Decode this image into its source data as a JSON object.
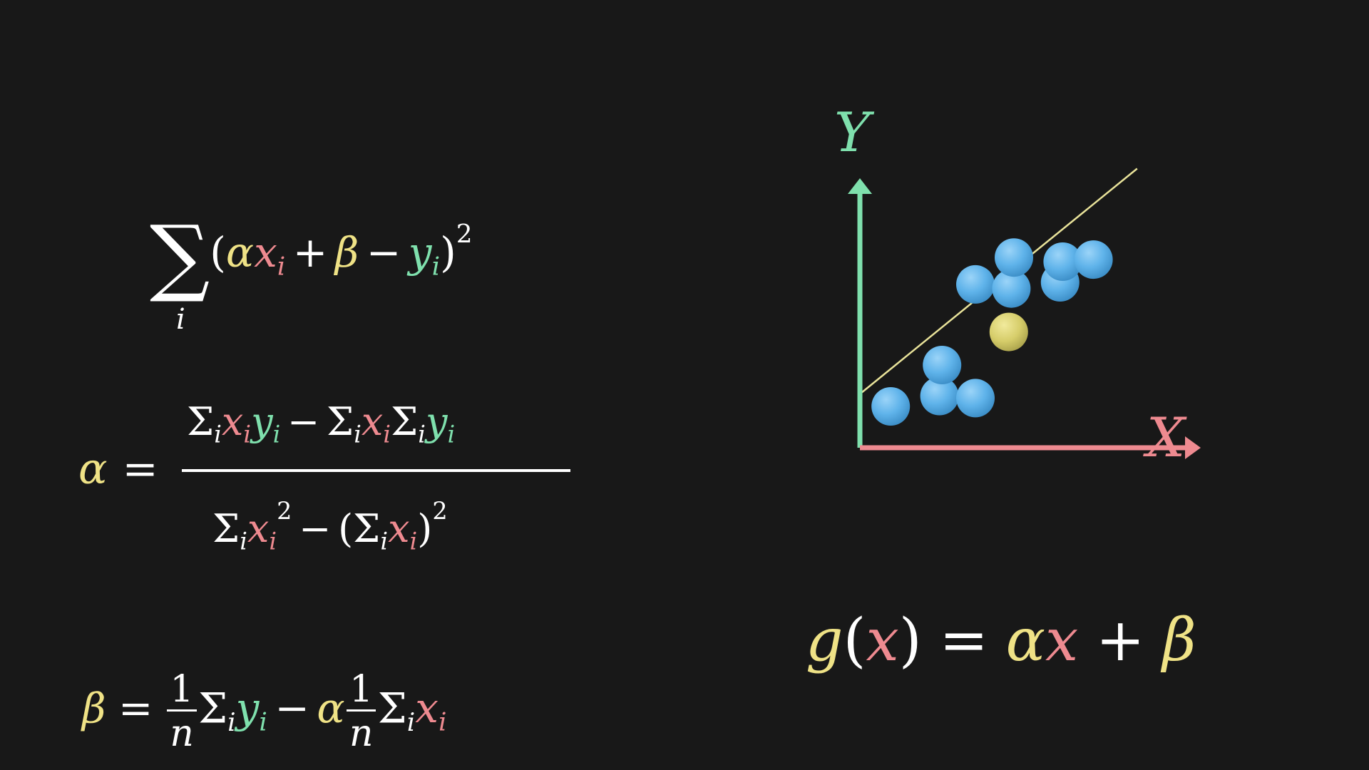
{
  "colors": {
    "background": "#181818",
    "x_color": "#ee8a90",
    "y_color": "#7fe0ad",
    "param_color": "#efe286",
    "point_color": "#5fb3ea",
    "highlight_point_color": "#d6cd6a",
    "fit_line_color": "#e9e39a"
  },
  "formulas": {
    "loss": {
      "sum_symbol": "∑",
      "sum_index": "i",
      "open": "(",
      "alpha": "α",
      "x": "x",
      "i": "i",
      "plus": "+",
      "beta": "β",
      "minus": "−",
      "y": "y",
      "close": ")",
      "power": "2"
    },
    "alpha": {
      "lhs": "α",
      "eq": "=",
      "sigma": "Σ",
      "i": "i",
      "x": "x",
      "y": "y",
      "minus": "−",
      "open": "(",
      "close": ")",
      "power": "2"
    },
    "beta": {
      "lhs": "β",
      "eq": "=",
      "one": "1",
      "n": "n",
      "sigma": "Σ",
      "i": "i",
      "y": "y",
      "x": "x",
      "minus": "−",
      "alpha": "α"
    },
    "model": {
      "g": "g",
      "open": "(",
      "x": "x",
      "close": ")",
      "eq": "=",
      "alpha": "α",
      "plus": "+",
      "beta": "β"
    }
  },
  "chart_data": {
    "type": "scatter",
    "xlabel": "X",
    "ylabel": "Y",
    "xlim": [
      0,
      10
    ],
    "ylim": [
      0,
      10
    ],
    "points": [
      {
        "x": 1.2,
        "y": 2.0
      },
      {
        "x": 3.1,
        "y": 2.5
      },
      {
        "x": 4.5,
        "y": 2.4
      },
      {
        "x": 3.2,
        "y": 4.0
      },
      {
        "x": 4.5,
        "y": 7.9
      },
      {
        "x": 5.9,
        "y": 7.7
      },
      {
        "x": 6.0,
        "y": 9.2
      },
      {
        "x": 7.8,
        "y": 8.0
      },
      {
        "x": 7.9,
        "y": 9.0
      },
      {
        "x": 9.1,
        "y": 9.1
      }
    ],
    "highlight_point": {
      "x": 5.8,
      "y": 5.6
    },
    "fit_line": {
      "x1": 0,
      "y1": 2.6,
      "x2": 10.8,
      "y2": 13.5
    }
  }
}
